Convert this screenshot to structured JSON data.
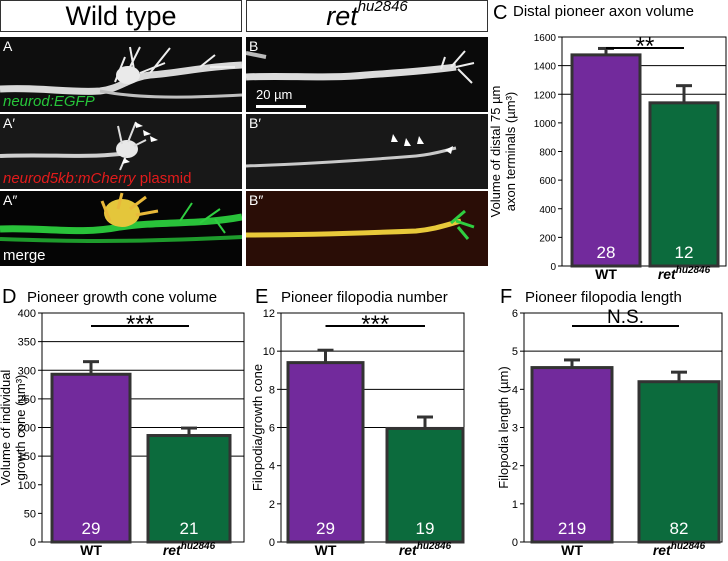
{
  "headers": {
    "wild_type": "Wild type",
    "ret_base": "ret",
    "ret_sup": "hu2846"
  },
  "panels": {
    "A": "A",
    "A1": "A′",
    "A2": "A″",
    "B": "B",
    "B1": "B′",
    "B2": "B″",
    "C": "C",
    "D": "D",
    "E": "E",
    "F": "F"
  },
  "micro_labels": {
    "neurod_egfp": "neurod:EGFP",
    "mcherry": "neurod5kb:mCherry",
    "plasmid": " plasmid",
    "merge": "merge",
    "scale": "20 µm"
  },
  "colors": {
    "wt_bar": "#722a9c",
    "ret_bar": "#0c6b3d",
    "bar_edge": "#333333",
    "egfp_label": "#27c53a",
    "mcherry_label": "#e21b1b"
  },
  "chart_data": [
    {
      "id": "C",
      "type": "bar",
      "title": "Distal pioneer axon volume",
      "ylabel": [
        "Volume of distal 75 µm",
        "axon terminals (µm³)"
      ],
      "ylim": [
        0,
        1600
      ],
      "yticks": [
        0,
        200,
        400,
        600,
        800,
        1000,
        1200,
        1400,
        1600
      ],
      "gridlines": [
        1400,
        1200
      ],
      "categories": [
        "WT",
        "ret"
      ],
      "category_sup": [
        "",
        "hu2846"
      ],
      "values": [
        1475,
        1140
      ],
      "errors": [
        45,
        120
      ],
      "n": [
        "28",
        "12"
      ],
      "significance": "**"
    },
    {
      "id": "D",
      "type": "bar",
      "title": "Pioneer growth cone volume",
      "ylabel": [
        "Volume of individual",
        "growth cone (µm³)"
      ],
      "ylim": [
        0,
        400
      ],
      "yticks": [
        0,
        50,
        100,
        150,
        200,
        250,
        300,
        350,
        400
      ],
      "gridlines": [
        350,
        300,
        250,
        200,
        150
      ],
      "categories": [
        "WT",
        "ret"
      ],
      "category_sup": [
        "",
        "hu2846"
      ],
      "values": [
        293,
        186
      ],
      "errors": [
        22,
        13
      ],
      "n": [
        "29",
        "21"
      ],
      "significance": "***"
    },
    {
      "id": "E",
      "type": "bar",
      "title": "Pioneer filopodia number",
      "ylabel": [
        "Filopodia/growth cone"
      ],
      "ylim": [
        0,
        12
      ],
      "yticks": [
        0,
        2,
        4,
        6,
        8,
        10,
        12
      ],
      "gridlines": [
        10,
        8,
        6
      ],
      "categories": [
        "WT",
        "ret"
      ],
      "category_sup": [
        "",
        "hu2846"
      ],
      "values": [
        9.4,
        5.95
      ],
      "errors": [
        0.65,
        0.6
      ],
      "n": [
        "29",
        "19"
      ],
      "significance": "***"
    },
    {
      "id": "F",
      "type": "bar",
      "title": "Pioneer filopodia length",
      "ylabel": [
        "Filopodia length (µm)"
      ],
      "ylim": [
        0,
        6
      ],
      "yticks": [
        0,
        1,
        2,
        3,
        4,
        5,
        6
      ],
      "gridlines": [
        5
      ],
      "categories": [
        "WT",
        "ret"
      ],
      "category_sup": [
        "",
        "hu2846"
      ],
      "values": [
        4.57,
        4.2
      ],
      "errors": [
        0.2,
        0.25
      ],
      "n": [
        "219",
        "82"
      ],
      "significance": "N.S."
    }
  ]
}
